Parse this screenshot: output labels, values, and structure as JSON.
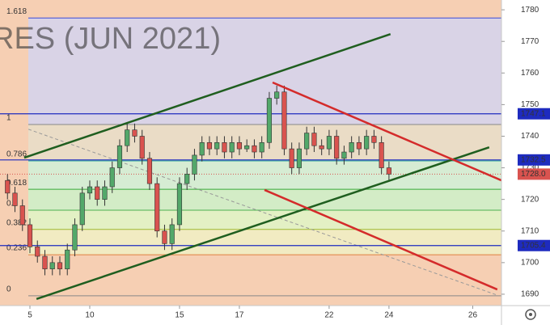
{
  "chart_data": {
    "type": "candlestick",
    "watermark": "RES (JUN 2021)",
    "up_color": "#53a86a",
    "down_color": "#d9534f",
    "wick_color": "#333333",
    "background": "#f6cfb3",
    "xlim": [
      -1,
      15.76
    ],
    "xticks": [
      {
        "value": 0,
        "label": "5"
      },
      {
        "value": 2,
        "label": "10"
      },
      {
        "value": 5,
        "label": "15"
      },
      {
        "value": 7,
        "label": "17"
      },
      {
        "value": 10,
        "label": "22"
      },
      {
        "value": 12,
        "label": "24"
      },
      {
        "value": 14.8,
        "label": "26"
      }
    ],
    "ylim": [
      1686.4,
      1783.1
    ],
    "yticks": [
      1690,
      1700,
      1710,
      1720,
      1730,
      1740,
      1750,
      1760,
      1770,
      1780
    ],
    "x": [
      -0.75,
      -0.5,
      -0.25,
      0,
      0.25,
      0.5,
      0.75,
      1,
      1.25,
      1.5,
      1.75,
      2,
      2.25,
      2.5,
      2.75,
      3,
      3.25,
      3.5,
      3.75,
      4,
      4.25,
      4.5,
      4.75,
      5,
      5.25,
      5.5,
      5.75,
      6,
      6.25,
      6.5,
      6.75,
      7,
      7.25,
      7.5,
      7.75,
      8,
      8.25,
      8.5,
      8.75,
      9,
      9.25,
      9.5,
      9.75,
      10,
      10.25,
      10.5,
      10.75,
      11,
      11.25,
      11.5,
      11.75,
      12
    ],
    "open": [
      1726,
      1722,
      1718,
      1712,
      1705,
      1702,
      1698,
      1700,
      1698,
      1704,
      1712,
      1722,
      1724,
      1720,
      1724,
      1730,
      1737,
      1742,
      1740,
      1733,
      1725,
      1710,
      1706,
      1712,
      1725,
      1728,
      1734,
      1738,
      1736,
      1738,
      1735,
      1738,
      1736,
      1737,
      1735,
      1738,
      1752,
      1754,
      1736,
      1730,
      1736,
      1741,
      1737,
      1736,
      1740,
      1733,
      1735,
      1738,
      1736,
      1740,
      1738,
      1730
    ],
    "high": [
      1728,
      1724,
      1720,
      1714,
      1707,
      1704,
      1702,
      1702,
      1706,
      1714,
      1724,
      1726,
      1726,
      1726,
      1732,
      1739,
      1744,
      1744,
      1742,
      1735,
      1727,
      1712,
      1714,
      1727,
      1730,
      1736,
      1740,
      1740,
      1740,
      1740,
      1740,
      1740,
      1739,
      1739,
      1740,
      1754,
      1756,
      1756,
      1738,
      1738,
      1743,
      1743,
      1739,
      1742,
      1742,
      1737,
      1740,
      1740,
      1742,
      1742,
      1740,
      1732
    ],
    "low": [
      1720,
      1716,
      1710,
      1703,
      1700,
      1696,
      1696,
      1696,
      1696,
      1702,
      1710,
      1720,
      1718,
      1718,
      1722,
      1728,
      1735,
      1738,
      1731,
      1723,
      1708,
      1704,
      1704,
      1710,
      1723,
      1726,
      1732,
      1734,
      1734,
      1733,
      1733,
      1734,
      1735,
      1733,
      1733,
      1736,
      1750,
      1734,
      1728,
      1728,
      1734,
      1735,
      1734,
      1734,
      1731,
      1731,
      1733,
      1734,
      1734,
      1736,
      1728,
      1726
    ],
    "close": [
      1722,
      1718,
      1712,
      1705,
      1702,
      1698,
      1700,
      1698,
      1704,
      1712,
      1722,
      1724,
      1720,
      1724,
      1730,
      1737,
      1742,
      1740,
      1733,
      1725,
      1710,
      1706,
      1712,
      1725,
      1728,
      1734,
      1738,
      1736,
      1738,
      1735,
      1738,
      1736,
      1737,
      1735,
      1738,
      1752,
      1754,
      1736,
      1730,
      1736,
      1741,
      1737,
      1736,
      1740,
      1733,
      1735,
      1738,
      1736,
      1740,
      1738,
      1730,
      1728
    ],
    "fib_levels": [
      {
        "ratio": 1.618,
        "price": 1777.4,
        "color": "#3b4bd6",
        "fill": "#d9d3e6"
      },
      {
        "ratio": 1,
        "price": 1743.7,
        "color": "#888888",
        "fill": "#eadcc6"
      },
      {
        "ratio": 0.786,
        "price": 1732.2,
        "color": "#2aa39a",
        "fill": "#d6ecd3"
      },
      {
        "ratio": 0.618,
        "price": 1723.2,
        "color": "#38a838",
        "fill": "#d3ecc6"
      },
      {
        "ratio": 0.5,
        "price": 1716.6,
        "color": "#4caf50",
        "fill": "#e3f0c4"
      },
      {
        "ratio": 0.382,
        "price": 1710.5,
        "color": "#a0b830",
        "fill": "#f1ebc2"
      },
      {
        "ratio": 0.236,
        "price": 1702.5,
        "color": "#e08040",
        "fill": "#f6cfb3"
      },
      {
        "ratio": 0,
        "price": 1689.5,
        "color": "#888888",
        "fill": "#f6cfb3"
      }
    ],
    "price_lines": [
      {
        "value": 1747.1,
        "color": "#1e2bbf"
      },
      {
        "value": 1732.5,
        "color": "#1e2bbf"
      },
      {
        "value": 1705.4,
        "color": "#1e2bbf"
      }
    ],
    "last_price": {
      "value": 1728,
      "label": "1728.0",
      "color": "#d9534f"
    },
    "trend_lines": [
      {
        "x": [
          -0.19,
          12.05
        ],
        "y": [
          1733.2,
          1772.3
        ],
        "color": "#1f5e1f"
      },
      {
        "x": [
          0.22,
          15.35
        ],
        "y": [
          1688.5,
          1736.5
        ],
        "color": "#1f5e1f"
      },
      {
        "x": [
          8.11,
          15.89
        ],
        "y": [
          1757.0,
          1725.5
        ],
        "color": "#d42b2b"
      },
      {
        "x": [
          7.84,
          15.62
        ],
        "y": [
          1723.0,
          1691.5
        ],
        "color": "#d42b2b"
      }
    ],
    "dashed_line": {
      "x": [
        -0.05,
        15.62
      ],
      "y": [
        1742.2,
        1689.7
      ],
      "color": "#999999"
    }
  }
}
